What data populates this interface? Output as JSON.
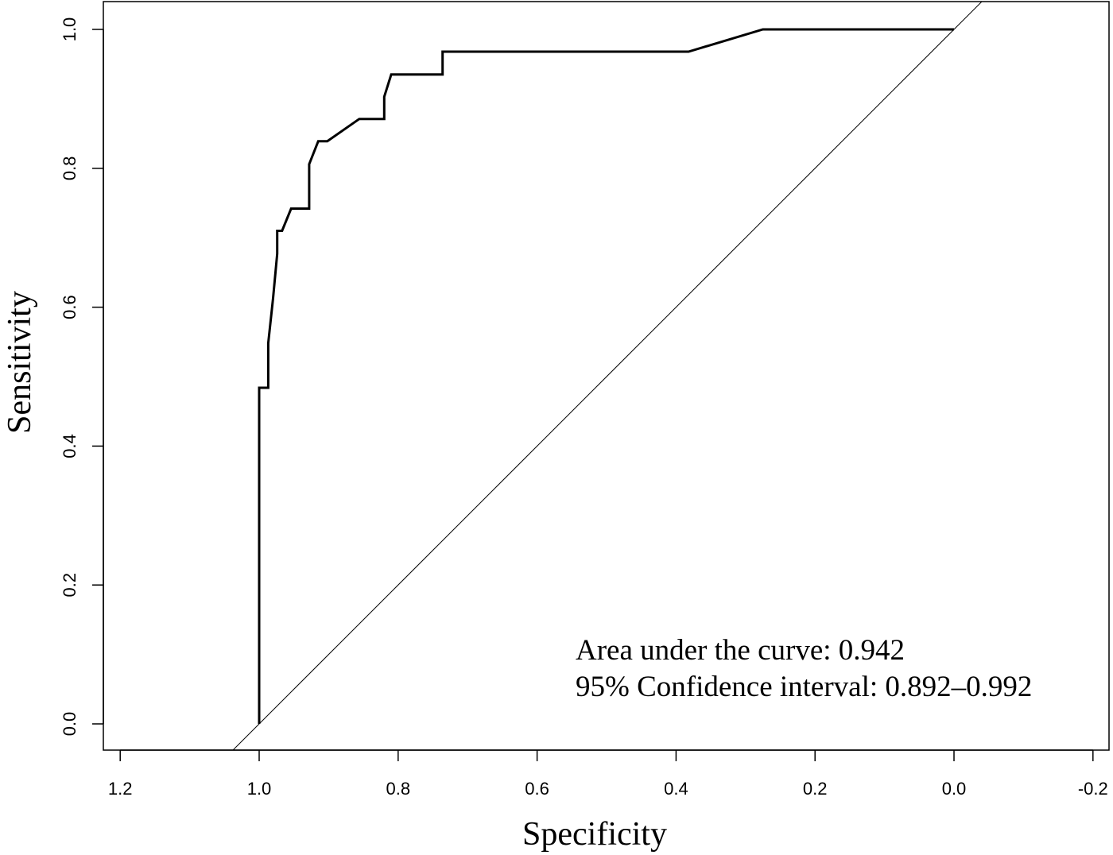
{
  "chart_data": {
    "type": "line",
    "title": "",
    "xlabel": "Specificity",
    "ylabel": "Sensitivity",
    "x_reversed": true,
    "xlim": [
      1.2,
      -0.2
    ],
    "ylim": [
      0.0,
      1.0
    ],
    "x_ticks": [
      1.2,
      1.0,
      0.8,
      0.6,
      0.4,
      0.2,
      0.0,
      -0.2
    ],
    "x_tick_labels": [
      "1.2",
      "1.0",
      "0.8",
      "0.6",
      "0.4",
      "0.2",
      "0.0",
      "-0.2"
    ],
    "y_ticks": [
      0.0,
      0.2,
      0.4,
      0.6,
      0.8,
      1.0
    ],
    "y_tick_labels": [
      "0.0",
      "0.2",
      "0.4",
      "0.6",
      "0.8",
      "1.0"
    ],
    "grid": false,
    "legend": "none",
    "series": [
      {
        "x": [
          1.0,
          1.0,
          0.987,
          0.987,
          0.98,
          0.974,
          0.974,
          0.967,
          0.954,
          0.928,
          0.928,
          0.915,
          0.902,
          0.856,
          0.82,
          0.82,
          0.81,
          0.736,
          0.736,
          0.382,
          0.275,
          0.0
        ],
        "y": [
          0.0,
          0.484,
          0.484,
          0.548,
          0.613,
          0.677,
          0.71,
          0.71,
          0.742,
          0.742,
          0.806,
          0.839,
          0.839,
          0.871,
          0.871,
          0.903,
          0.935,
          0.935,
          0.968,
          0.968,
          1.0,
          1.0
        ]
      }
    ],
    "reference_line": {
      "from": [
        1.0,
        0.0
      ],
      "to": [
        0.0,
        1.0
      ]
    },
    "annotations": [
      "Area under the curve: 0.942",
      "95% Confidence interval: 0.892–0.992"
    ]
  }
}
